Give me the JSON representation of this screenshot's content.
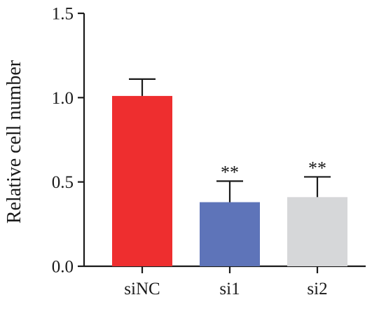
{
  "chart_data": {
    "type": "bar",
    "title": "",
    "xlabel": "",
    "ylabel": "Relative cell number",
    "ylim": [
      0,
      1.5
    ],
    "yticks": [
      "0.0",
      "0.5",
      "1.0",
      "1.5"
    ],
    "categories": [
      "siNC",
      "si1",
      "si2"
    ],
    "values": [
      1.01,
      0.38,
      0.41
    ],
    "errors": [
      0.1,
      0.125,
      0.12
    ],
    "annotations": [
      "",
      "**",
      "**"
    ],
    "colors": [
      "#ee2e2f",
      "#5e74b9",
      "#d6d7d9"
    ],
    "grid": false,
    "legend": "none"
  }
}
